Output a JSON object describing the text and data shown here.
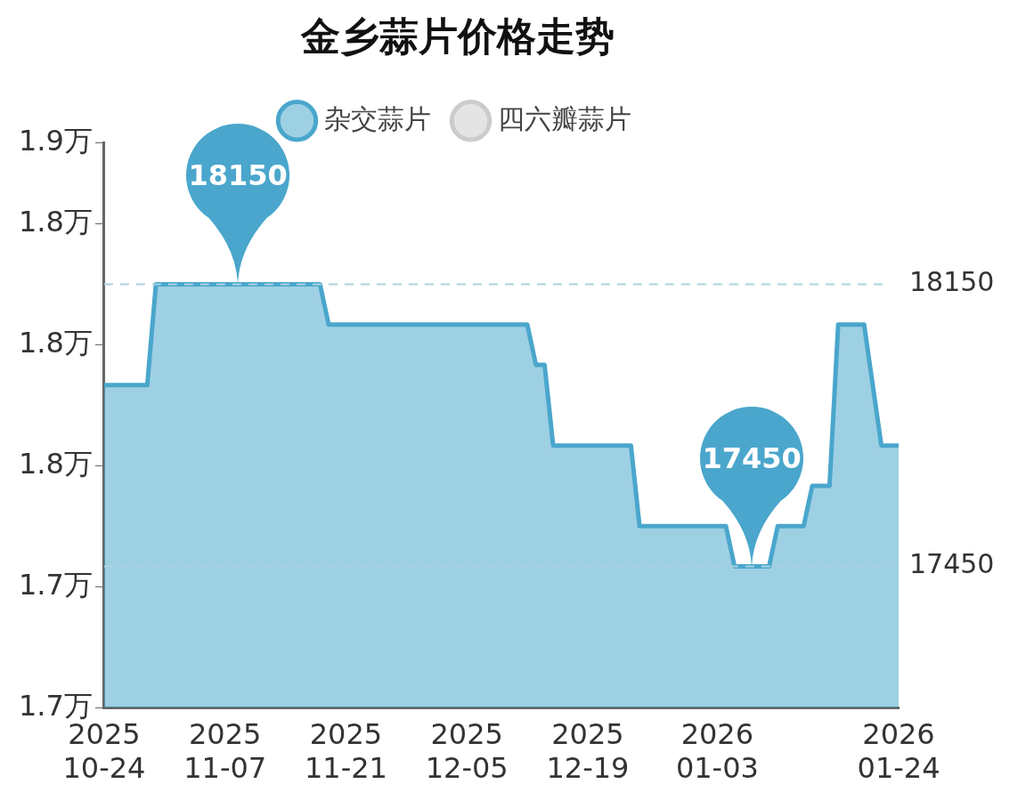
{
  "chart_data": {
    "type": "area",
    "title": "金乡蒜片价格走势",
    "legend": "top",
    "x": [
      "2025-10-24",
      "2025-10-29",
      "2025-10-30",
      "2025-11-18",
      "2025-11-19",
      "2025-12-12",
      "2025-12-13",
      "2025-12-14",
      "2025-12-15",
      "2025-12-24",
      "2025-12-25",
      "2026-01-04",
      "2026-01-05",
      "2026-01-09",
      "2026-01-10",
      "2026-01-13",
      "2026-01-14",
      "2026-01-16",
      "2026-01-17",
      "2026-01-20",
      "2026-01-21",
      "2026-01-22",
      "2026-01-24"
    ],
    "series": [
      {
        "name": "杂交蒜片",
        "color": "#4aa6cc",
        "values": [
          1.79,
          1.79,
          1.815,
          1.815,
          1.805,
          1.805,
          1.795,
          1.795,
          1.775,
          1.775,
          1.755,
          1.755,
          1.745,
          1.745,
          1.755,
          1.755,
          1.765,
          1.765,
          1.805,
          1.805,
          1.79,
          1.775,
          1.775
        ]
      },
      {
        "name": "四六瓣蒜片",
        "color": "#cccccc",
        "values": [
          null,
          null,
          null,
          null,
          null,
          null,
          null,
          null,
          null,
          null,
          null,
          null,
          null,
          null,
          null,
          null,
          null,
          null,
          null,
          null,
          null,
          null,
          null
        ]
      }
    ],
    "xlim": [
      "2025-10-24",
      "2026-01-24"
    ],
    "xticks": [
      {
        "value": "2025-10-24",
        "label": "2025 10-24"
      },
      {
        "value": "2025-11-07",
        "label": "2025 11-07"
      },
      {
        "value": "2025-11-21",
        "label": "2025 11-21"
      },
      {
        "value": "2025-12-05",
        "label": "2025 12-05"
      },
      {
        "value": "2025-12-19",
        "label": "2025 12-19"
      },
      {
        "value": "2026-01-03",
        "label": "2026 01-03"
      },
      {
        "value": "2026-01-24",
        "label": "2026 01-24"
      }
    ],
    "ylim": [
      1.71,
      1.85
    ],
    "yticks": [
      {
        "value": 1.71,
        "label": "1.7万"
      },
      {
        "value": 1.74,
        "label": "1.7万"
      },
      {
        "value": 1.77,
        "label": "1.8万"
      },
      {
        "value": 1.8,
        "label": "1.8万"
      },
      {
        "value": 1.83,
        "label": "1.8万"
      },
      {
        "value": 1.85,
        "label": "1.9万"
      }
    ],
    "ref_lines": [
      {
        "axis": "y",
        "value": 1.815,
        "color": "#a9d3e0",
        "line_style": "dashed"
      },
      {
        "axis": "y",
        "value": 1.745,
        "color": "#a9d3e0",
        "line_style": "dashed"
      }
    ],
    "annotations": [
      "18150",
      "17450",
      "18150",
      "17450"
    ],
    "grid": false,
    "marker": "none",
    "line_style": "solid"
  }
}
